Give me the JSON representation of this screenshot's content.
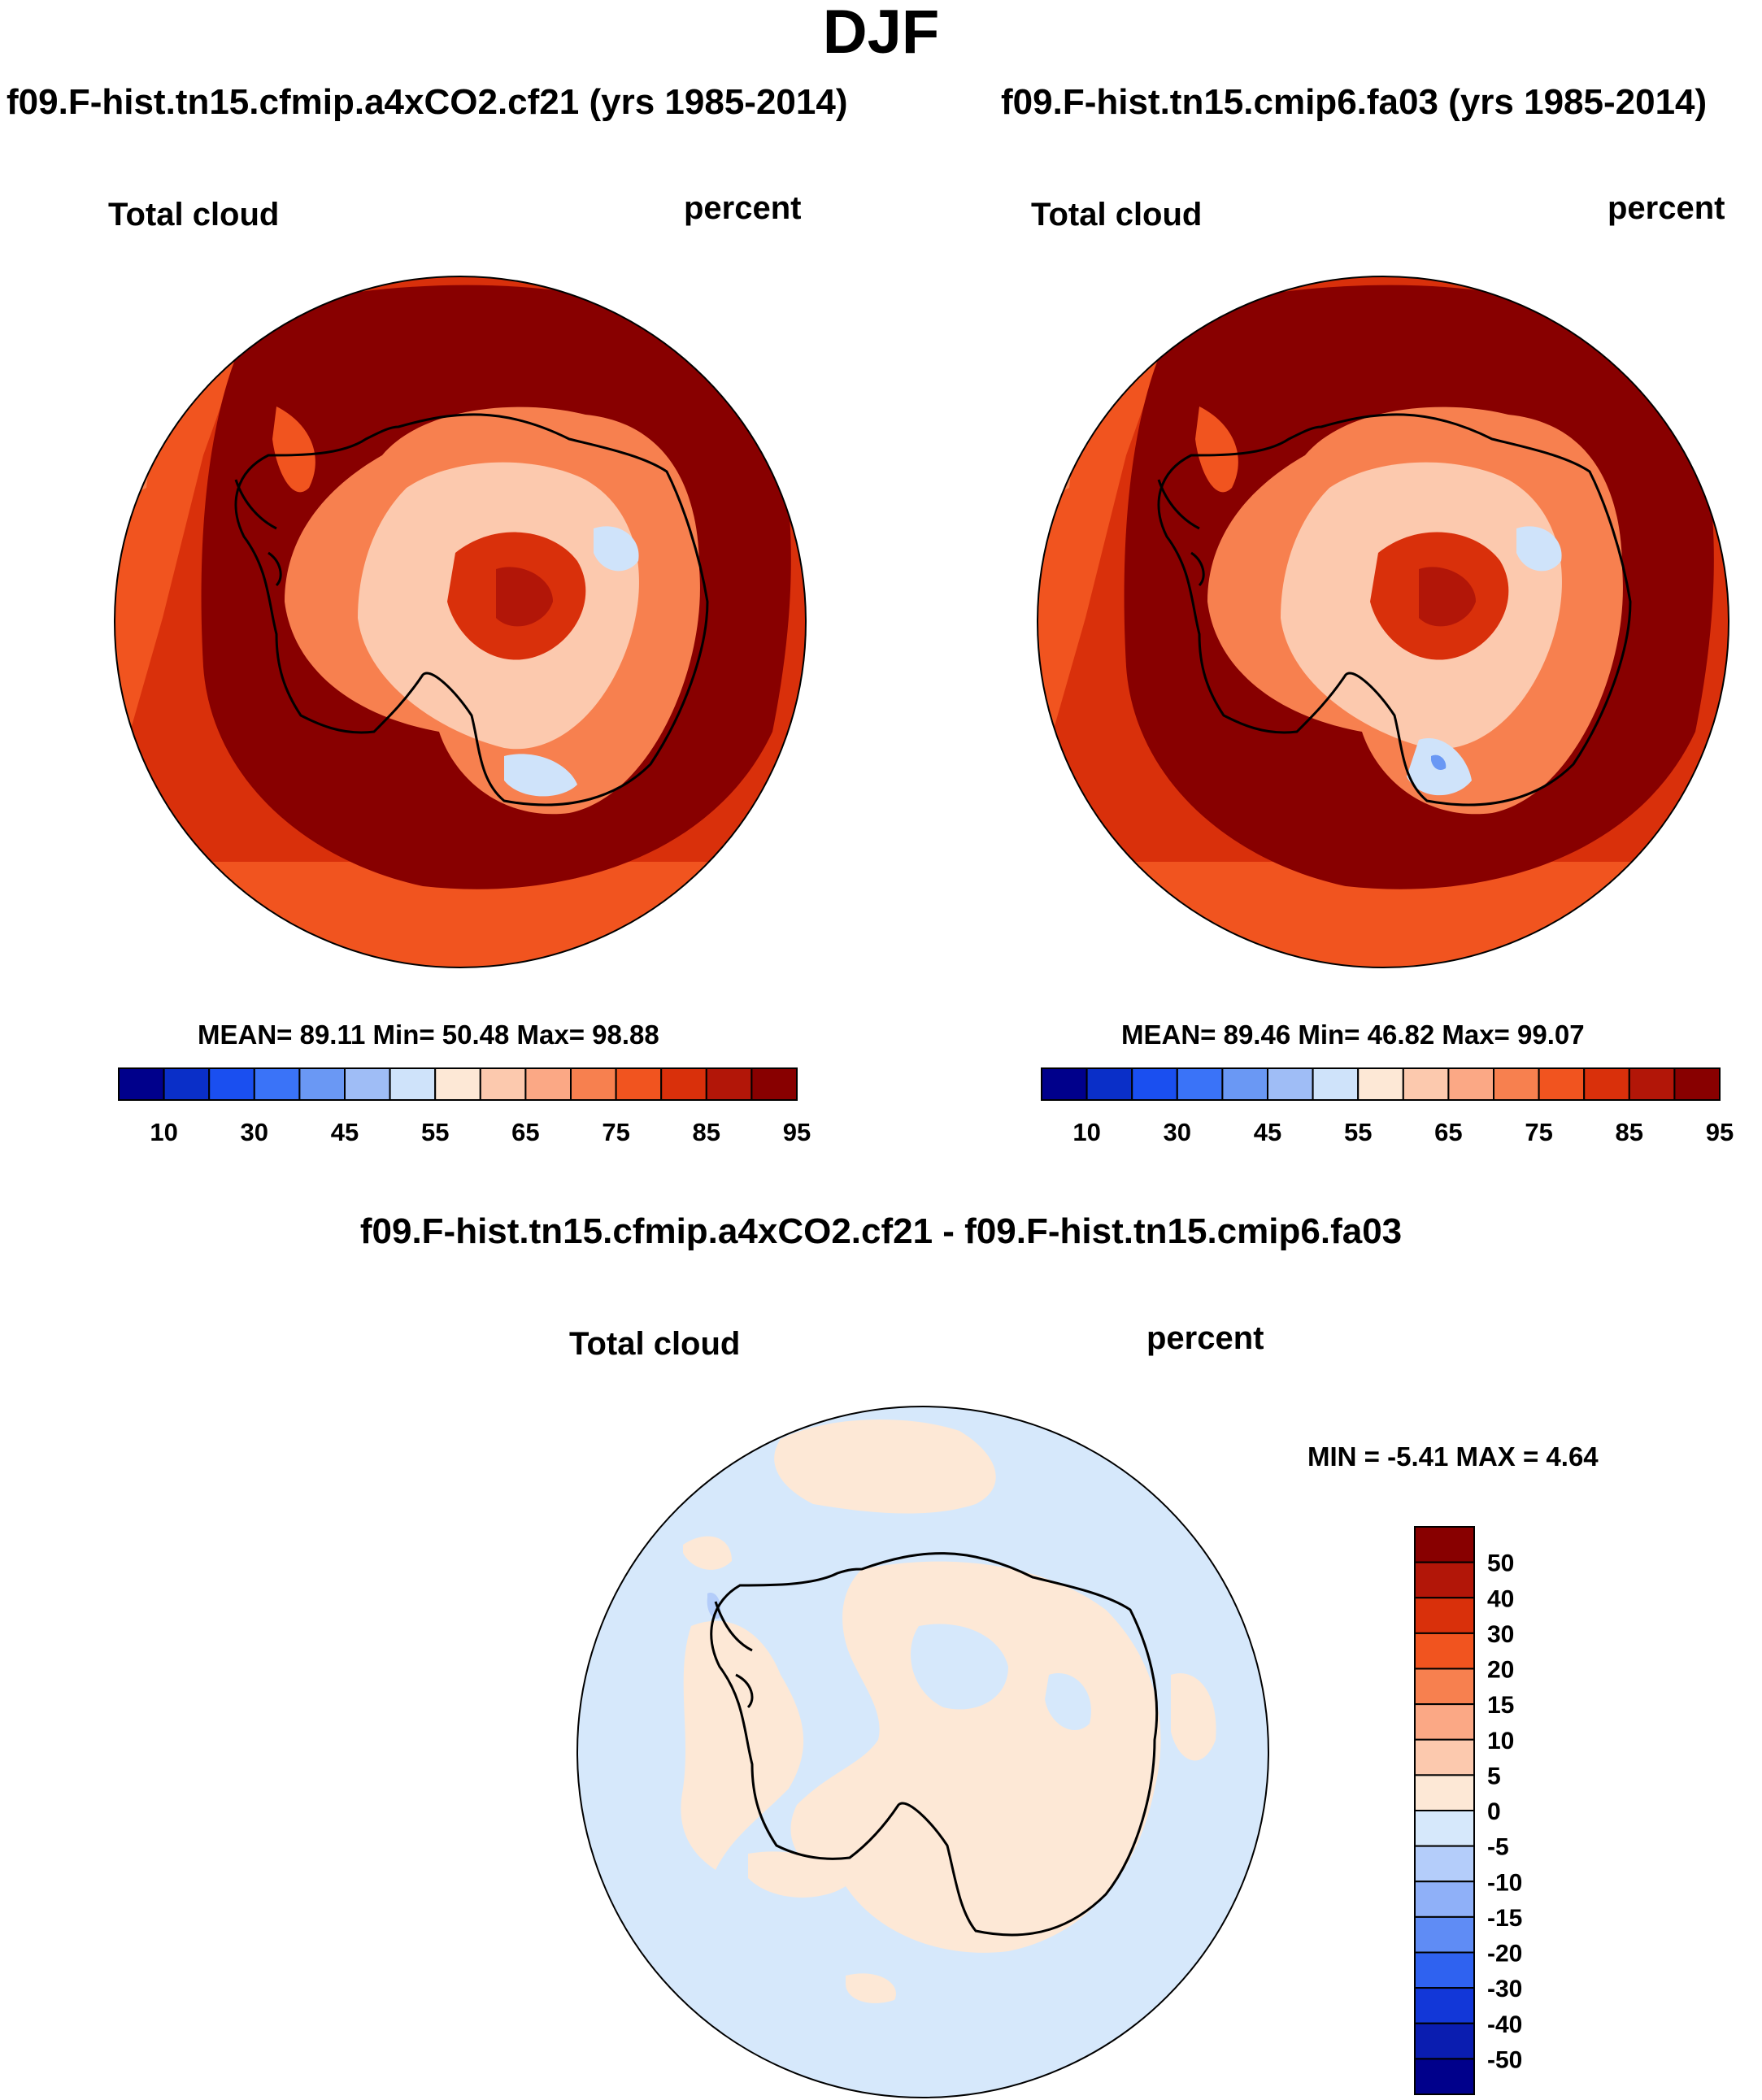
{
  "title": "DJF",
  "panels": [
    {
      "case_title": "f09.F-hist.tn15.cfmip.a4xCO2.cf21 (yrs 1985-2014)",
      "left_label": "Total cloud",
      "right_label": "percent",
      "stats": "MEAN=  89.11  Min=  50.48  Max=  98.88"
    },
    {
      "case_title": "f09.F-hist.tn15.cmip6.fa03 (yrs 1985-2014)",
      "left_label": "Total cloud",
      "right_label": "percent",
      "stats": "MEAN=  89.46  Min=  46.82  Max=  99.07"
    }
  ],
  "diff_panel": {
    "case_title": "f09.F-hist.tn15.cfmip.a4xCO2.cf21 - f09.F-hist.tn15.cmip6.fa03",
    "left_label": "Total cloud",
    "right_label": "percent",
    "stats": "MIN =  -5.41 MAX =   4.64"
  },
  "chart_data": [
    {
      "type": "heatmap",
      "projection": "south-polar-stereographic",
      "title": "f09.F-hist.tn15.cfmip.a4xCO2.cf21 (yrs 1985-2014)",
      "variable": "Total cloud",
      "units": "percent",
      "mean": 89.11,
      "min": 50.48,
      "max": 98.88,
      "colorbar": {
        "levels": [
          10,
          30,
          45,
          55,
          65,
          75,
          85,
          95
        ],
        "colors": [
          "#00008b",
          "#0a2fc8",
          "#1a4ff0",
          "#3a73f8",
          "#6a98f4",
          "#9fbdf6",
          "#cfe3fa",
          "#fde8d6",
          "#fcc9ae",
          "#fba885",
          "#f7804f",
          "#f1541f",
          "#d9300b",
          "#b21608",
          "#880000"
        ]
      }
    },
    {
      "type": "heatmap",
      "projection": "south-polar-stereographic",
      "title": "f09.F-hist.tn15.cmip6.fa03 (yrs 1985-2014)",
      "variable": "Total cloud",
      "units": "percent",
      "mean": 89.46,
      "min": 46.82,
      "max": 99.07,
      "colorbar": {
        "levels": [
          10,
          30,
          45,
          55,
          65,
          75,
          85,
          95
        ],
        "colors": [
          "#00008b",
          "#0a2fc8",
          "#1a4ff0",
          "#3a73f8",
          "#6a98f4",
          "#9fbdf6",
          "#cfe3fa",
          "#fde8d6",
          "#fcc9ae",
          "#fba885",
          "#f7804f",
          "#f1541f",
          "#d9300b",
          "#b21608",
          "#880000"
        ]
      }
    },
    {
      "type": "heatmap",
      "projection": "south-polar-stereographic",
      "title": "f09.F-hist.tn15.cfmip.a4xCO2.cf21 - f09.F-hist.tn15.cmip6.fa03",
      "variable": "Total cloud",
      "units": "percent",
      "min": -5.41,
      "max": 4.64,
      "colorbar": {
        "levels": [
          50,
          40,
          30,
          20,
          15,
          10,
          5,
          0,
          -5,
          -10,
          -15,
          -20,
          -30,
          -40,
          -50
        ],
        "colors": [
          "#880000",
          "#b21608",
          "#d9300b",
          "#f1541f",
          "#f7804f",
          "#fba885",
          "#fcc9ae",
          "#fde8d6",
          "#d6e8fb",
          "#b4cdfa",
          "#8fb0f8",
          "#5f8cf5",
          "#2f62f0",
          "#1237d8",
          "#0a1db0",
          "#00008b"
        ]
      }
    }
  ]
}
